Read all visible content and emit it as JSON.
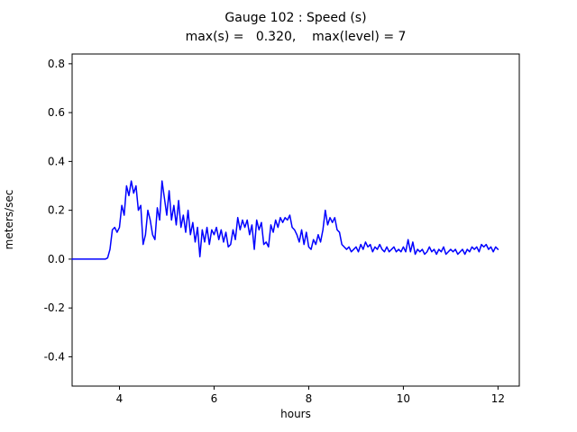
{
  "figure": {
    "title_line1": "Gauge 102 : Speed (s)",
    "title_line2": "max(s) =   0.320,    max(level) = 7",
    "xlabel": "hours",
    "ylabel": "meters/sec"
  },
  "chart_data": {
    "type": "line",
    "title": "Gauge 102 : Speed (s)",
    "subtitle": "max(s) =   0.320,    max(level) = 7",
    "xlabel": "hours",
    "ylabel": "meters/sec",
    "xlim": [
      3.0,
      12.45
    ],
    "ylim": [
      -0.52,
      0.84
    ],
    "xticks": [
      4,
      6,
      8,
      10,
      12
    ],
    "yticks": [
      -0.4,
      -0.2,
      0.0,
      0.2,
      0.4,
      0.6,
      0.8
    ],
    "grid": false,
    "legend": "none",
    "max_s": "0.320",
    "max_level": 7,
    "line_color": "#0000ff",
    "series": [
      {
        "name": "speed",
        "points": [
          [
            3.0,
            0.0
          ],
          [
            3.1,
            0.0
          ],
          [
            3.2,
            0.0
          ],
          [
            3.3,
            0.0
          ],
          [
            3.4,
            0.0
          ],
          [
            3.5,
            0.0
          ],
          [
            3.6,
            0.0
          ],
          [
            3.7,
            0.0
          ],
          [
            3.75,
            0.005
          ],
          [
            3.8,
            0.04
          ],
          [
            3.85,
            0.12
          ],
          [
            3.9,
            0.13
          ],
          [
            3.95,
            0.11
          ],
          [
            4.0,
            0.13
          ],
          [
            4.05,
            0.22
          ],
          [
            4.1,
            0.18
          ],
          [
            4.15,
            0.3
          ],
          [
            4.2,
            0.26
          ],
          [
            4.25,
            0.32
          ],
          [
            4.3,
            0.27
          ],
          [
            4.35,
            0.3
          ],
          [
            4.4,
            0.2
          ],
          [
            4.45,
            0.22
          ],
          [
            4.5,
            0.06
          ],
          [
            4.55,
            0.1
          ],
          [
            4.6,
            0.2
          ],
          [
            4.65,
            0.16
          ],
          [
            4.7,
            0.1
          ],
          [
            4.75,
            0.08
          ],
          [
            4.8,
            0.21
          ],
          [
            4.85,
            0.16
          ],
          [
            4.9,
            0.32
          ],
          [
            4.95,
            0.25
          ],
          [
            5.0,
            0.18
          ],
          [
            5.05,
            0.28
          ],
          [
            5.1,
            0.16
          ],
          [
            5.15,
            0.22
          ],
          [
            5.2,
            0.14
          ],
          [
            5.25,
            0.24
          ],
          [
            5.3,
            0.13
          ],
          [
            5.35,
            0.18
          ],
          [
            5.4,
            0.11
          ],
          [
            5.45,
            0.2
          ],
          [
            5.5,
            0.1
          ],
          [
            5.55,
            0.15
          ],
          [
            5.6,
            0.07
          ],
          [
            5.65,
            0.13
          ],
          [
            5.7,
            0.01
          ],
          [
            5.75,
            0.12
          ],
          [
            5.8,
            0.07
          ],
          [
            5.85,
            0.13
          ],
          [
            5.9,
            0.06
          ],
          [
            5.95,
            0.12
          ],
          [
            6.0,
            0.1
          ],
          [
            6.05,
            0.13
          ],
          [
            6.1,
            0.08
          ],
          [
            6.15,
            0.12
          ],
          [
            6.2,
            0.07
          ],
          [
            6.25,
            0.11
          ],
          [
            6.3,
            0.05
          ],
          [
            6.35,
            0.06
          ],
          [
            6.4,
            0.12
          ],
          [
            6.45,
            0.08
          ],
          [
            6.5,
            0.17
          ],
          [
            6.55,
            0.12
          ],
          [
            6.6,
            0.16
          ],
          [
            6.65,
            0.13
          ],
          [
            6.7,
            0.16
          ],
          [
            6.75,
            0.1
          ],
          [
            6.8,
            0.14
          ],
          [
            6.85,
            0.04
          ],
          [
            6.9,
            0.16
          ],
          [
            6.95,
            0.12
          ],
          [
            7.0,
            0.15
          ],
          [
            7.05,
            0.06
          ],
          [
            7.1,
            0.07
          ],
          [
            7.15,
            0.05
          ],
          [
            7.2,
            0.14
          ],
          [
            7.25,
            0.11
          ],
          [
            7.3,
            0.16
          ],
          [
            7.35,
            0.13
          ],
          [
            7.4,
            0.17
          ],
          [
            7.45,
            0.15
          ],
          [
            7.5,
            0.17
          ],
          [
            7.55,
            0.16
          ],
          [
            7.6,
            0.18
          ],
          [
            7.65,
            0.13
          ],
          [
            7.7,
            0.12
          ],
          [
            7.75,
            0.1
          ],
          [
            7.8,
            0.07
          ],
          [
            7.85,
            0.12
          ],
          [
            7.9,
            0.06
          ],
          [
            7.95,
            0.11
          ],
          [
            8.0,
            0.05
          ],
          [
            8.05,
            0.04
          ],
          [
            8.1,
            0.08
          ],
          [
            8.15,
            0.06
          ],
          [
            8.2,
            0.1
          ],
          [
            8.25,
            0.07
          ],
          [
            8.3,
            0.12
          ],
          [
            8.35,
            0.2
          ],
          [
            8.4,
            0.14
          ],
          [
            8.45,
            0.17
          ],
          [
            8.5,
            0.15
          ],
          [
            8.55,
            0.17
          ],
          [
            8.6,
            0.12
          ],
          [
            8.65,
            0.11
          ],
          [
            8.7,
            0.06
          ],
          [
            8.75,
            0.05
          ],
          [
            8.8,
            0.04
          ],
          [
            8.85,
            0.05
          ],
          [
            8.9,
            0.03
          ],
          [
            8.95,
            0.04
          ],
          [
            9.0,
            0.05
          ],
          [
            9.05,
            0.03
          ],
          [
            9.1,
            0.06
          ],
          [
            9.15,
            0.04
          ],
          [
            9.2,
            0.07
          ],
          [
            9.25,
            0.05
          ],
          [
            9.3,
            0.06
          ],
          [
            9.35,
            0.03
          ],
          [
            9.4,
            0.05
          ],
          [
            9.45,
            0.04
          ],
          [
            9.5,
            0.06
          ],
          [
            9.55,
            0.04
          ],
          [
            9.6,
            0.03
          ],
          [
            9.65,
            0.05
          ],
          [
            9.7,
            0.03
          ],
          [
            9.75,
            0.04
          ],
          [
            9.8,
            0.05
          ],
          [
            9.85,
            0.03
          ],
          [
            9.9,
            0.04
          ],
          [
            9.95,
            0.03
          ],
          [
            10.0,
            0.05
          ],
          [
            10.05,
            0.03
          ],
          [
            10.1,
            0.08
          ],
          [
            10.15,
            0.03
          ],
          [
            10.2,
            0.07
          ],
          [
            10.25,
            0.02
          ],
          [
            10.3,
            0.04
          ],
          [
            10.35,
            0.03
          ],
          [
            10.4,
            0.04
          ],
          [
            10.45,
            0.02
          ],
          [
            10.5,
            0.03
          ],
          [
            10.55,
            0.05
          ],
          [
            10.6,
            0.03
          ],
          [
            10.65,
            0.04
          ],
          [
            10.7,
            0.02
          ],
          [
            10.75,
            0.04
          ],
          [
            10.8,
            0.03
          ],
          [
            10.85,
            0.05
          ],
          [
            10.9,
            0.02
          ],
          [
            10.95,
            0.03
          ],
          [
            11.0,
            0.04
          ],
          [
            11.05,
            0.03
          ],
          [
            11.1,
            0.04
          ],
          [
            11.15,
            0.02
          ],
          [
            11.2,
            0.03
          ],
          [
            11.25,
            0.04
          ],
          [
            11.3,
            0.02
          ],
          [
            11.35,
            0.04
          ],
          [
            11.4,
            0.03
          ],
          [
            11.45,
            0.05
          ],
          [
            11.5,
            0.04
          ],
          [
            11.55,
            0.05
          ],
          [
            11.6,
            0.03
          ],
          [
            11.65,
            0.06
          ],
          [
            11.7,
            0.05
          ],
          [
            11.75,
            0.06
          ],
          [
            11.8,
            0.04
          ],
          [
            11.85,
            0.05
          ],
          [
            11.9,
            0.03
          ],
          [
            11.95,
            0.05
          ],
          [
            12.0,
            0.04
          ]
        ]
      }
    ]
  }
}
